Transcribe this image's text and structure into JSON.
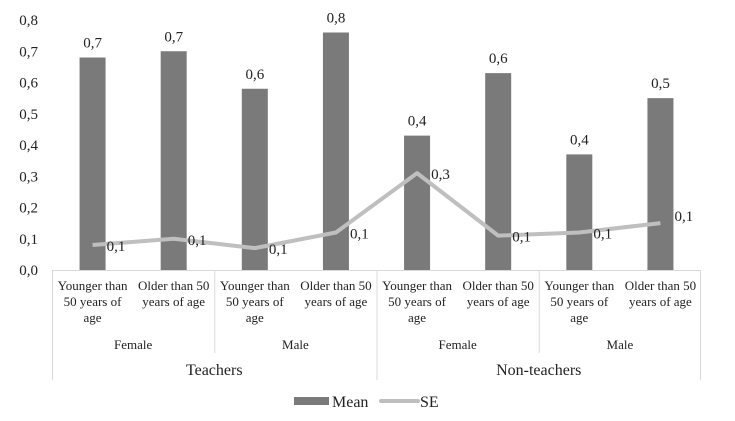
{
  "chart_data": {
    "type": "bar",
    "title": "",
    "xlabel": "",
    "ylabel": "",
    "ylim": [
      0,
      0.8
    ],
    "y_ticks": [
      "0,0",
      "0,1",
      "0,2",
      "0,3",
      "0,4",
      "0,5",
      "0,6",
      "0,7",
      "0,8"
    ],
    "grid": false,
    "legend_position": "bottom",
    "categories": [
      "Younger than 50 years of age",
      "Older than 50 years of age",
      "Younger than 50 years of age",
      "Older than 50 years of age",
      "Younger than 50 years of age",
      "Older than 50 years of age",
      "Younger than 50 years of age",
      "Older than 50 years of age"
    ],
    "category_label_lines": [
      [
        "Younger than",
        "50 years of",
        "age"
      ],
      [
        "Older than 50",
        "years of age"
      ],
      [
        "Younger than",
        "50 years of",
        "age"
      ],
      [
        "Older than 50",
        "years of age"
      ],
      [
        "Younger than",
        "50 years of",
        "age"
      ],
      [
        "Older than 50",
        "years of age"
      ],
      [
        "Younger than",
        "50 years of",
        "age"
      ],
      [
        "Older than 50",
        "years of age"
      ]
    ],
    "group_level_1": [
      {
        "label": "Female",
        "span": [
          0,
          1
        ]
      },
      {
        "label": "Male",
        "span": [
          2,
          3
        ]
      },
      {
        "label": "Female",
        "span": [
          4,
          5
        ]
      },
      {
        "label": "Male",
        "span": [
          6,
          7
        ]
      }
    ],
    "group_level_2": [
      {
        "label": "Teachers",
        "span": [
          0,
          3
        ]
      },
      {
        "label": "Non-teachers",
        "span": [
          4,
          7
        ]
      }
    ],
    "series": [
      {
        "name": "Mean",
        "type": "bar",
        "color": "#7a7a7b",
        "values": [
          0.68,
          0.7,
          0.58,
          0.76,
          0.43,
          0.63,
          0.37,
          0.55
        ],
        "data_labels": [
          "0,7",
          "0,7",
          "0,6",
          "0,8",
          "0,4",
          "0,6",
          "0,4",
          "0,5"
        ]
      },
      {
        "name": "SE",
        "type": "line",
        "color": "#bfbfbf",
        "values": [
          0.08,
          0.1,
          0.07,
          0.12,
          0.31,
          0.11,
          0.12,
          0.15
        ],
        "data_labels": [
          "0,1",
          "0,1",
          "0,1",
          "0,1",
          "0,3",
          "0,1",
          "0,1",
          "0,1"
        ]
      }
    ]
  }
}
